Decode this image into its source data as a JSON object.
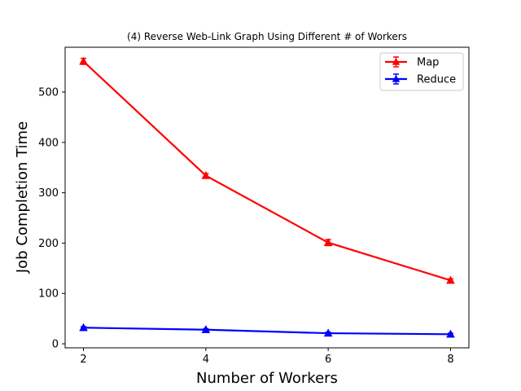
{
  "chart_data": {
    "type": "line",
    "title": "(4) Reverse Web-Link Graph Using Different # of Workers",
    "xlabel": "Number of Workers",
    "ylabel": "Job Completion Time",
    "x": [
      2,
      4,
      6,
      8
    ],
    "xticks": [
      2,
      4,
      6,
      8
    ],
    "yticks": [
      0,
      100,
      200,
      300,
      400,
      500
    ],
    "xlim": [
      1.7,
      8.3
    ],
    "ylim": [
      -8,
      589
    ],
    "grid": false,
    "legend_position": "top-right",
    "series": [
      {
        "name": "Map",
        "color": "#ff0000",
        "marker": "triangle",
        "values": [
          561,
          334,
          201,
          126
        ],
        "errors": [
          6,
          4,
          6,
          3
        ]
      },
      {
        "name": "Reduce",
        "color": "#0000ff",
        "marker": "triangle",
        "values": [
          32,
          28,
          21,
          19
        ],
        "errors": [
          2,
          2,
          2,
          2
        ]
      }
    ]
  }
}
